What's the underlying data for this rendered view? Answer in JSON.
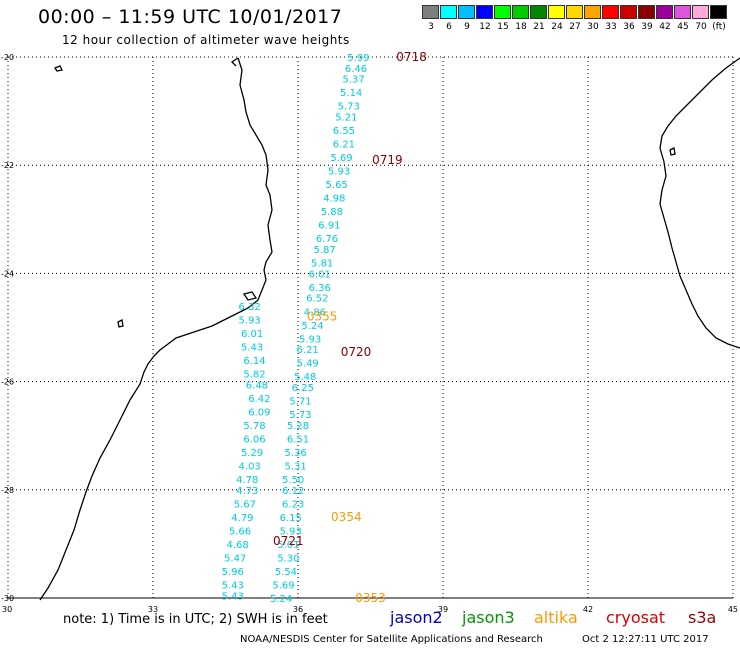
{
  "title": "00:00 – 11:59 UTC 10/01/2017",
  "subtitle": "12 hour collection of altimeter wave heights",
  "color_scale": {
    "labels": [
      "3",
      "6",
      "9",
      "12",
      "15",
      "18",
      "21",
      "24",
      "27",
      "30",
      "33",
      "36",
      "39",
      "42",
      "45",
      "70",
      "(ft)"
    ],
    "colors": [
      "#7f7f7f",
      "#00ffff",
      "#00bfff",
      "#0000ff",
      "#00ff00",
      "#00cc00",
      "#008800",
      "#ffff00",
      "#ffd700",
      "#ffa500",
      "#ff0000",
      "#cc0000",
      "#880000",
      "#990099",
      "#dd55dd",
      "#ffaadd",
      "#000000"
    ]
  },
  "axes": {
    "lat_labels": [
      "-20",
      "-22",
      "-24",
      "-26",
      "-28",
      "-30"
    ],
    "lon_labels": [
      "30",
      "33",
      "36",
      "39",
      "42",
      "45"
    ],
    "lat_values": [
      -20,
      -22,
      -24,
      -26,
      -28,
      -30
    ],
    "lon_values": [
      30,
      33,
      36,
      39,
      42,
      45
    ]
  },
  "track_wave_heights": {
    "color": "#00ccdd",
    "points": [
      {
        "lat": -20.0,
        "lon": 37.25,
        "v": "5.99"
      },
      {
        "lat": -20.2,
        "lon": 37.2,
        "v": "6.46"
      },
      {
        "lat": -20.4,
        "lon": 37.15,
        "v": "5.37"
      },
      {
        "lat": -20.65,
        "lon": 37.1,
        "v": "5.14"
      },
      {
        "lat": -20.9,
        "lon": 37.05,
        "v": "5.73"
      },
      {
        "lat": -21.1,
        "lon": 37.0,
        "v": "5.21"
      },
      {
        "lat": -21.35,
        "lon": 36.95,
        "v": "6.55"
      },
      {
        "lat": -21.6,
        "lon": 36.95,
        "v": "6.21"
      },
      {
        "lat": -21.85,
        "lon": 36.9,
        "v": "5.69"
      },
      {
        "lat": -22.1,
        "lon": 36.85,
        "v": "5.93"
      },
      {
        "lat": -22.35,
        "lon": 36.8,
        "v": "5.65"
      },
      {
        "lat": -22.6,
        "lon": 36.75,
        "v": "4.98"
      },
      {
        "lat": -22.85,
        "lon": 36.7,
        "v": "5.88"
      },
      {
        "lat": -23.1,
        "lon": 36.65,
        "v": "6.91"
      },
      {
        "lat": -23.35,
        "lon": 36.6,
        "v": "6.76"
      },
      {
        "lat": -23.55,
        "lon": 36.55,
        "v": "5.87"
      },
      {
        "lat": -23.8,
        "lon": 36.5,
        "v": "5.81"
      },
      {
        "lat": -24.0,
        "lon": 36.45,
        "v": "6.01"
      },
      {
        "lat": -24.25,
        "lon": 36.45,
        "v": "6.36"
      },
      {
        "lat": -24.45,
        "lon": 36.4,
        "v": "6.52"
      },
      {
        "lat": -24.7,
        "lon": 36.35,
        "v": "4.86"
      },
      {
        "lat": -24.95,
        "lon": 36.3,
        "v": "5.24"
      },
      {
        "lat": -25.2,
        "lon": 36.25,
        "v": "5.93"
      },
      {
        "lat": -25.4,
        "lon": 36.2,
        "v": "6.21"
      },
      {
        "lat": -25.65,
        "lon": 36.2,
        "v": "5.49"
      },
      {
        "lat": -25.9,
        "lon": 36.15,
        "v": "5.48"
      },
      {
        "lat": -26.1,
        "lon": 36.1,
        "v": "6.25"
      },
      {
        "lat": -26.35,
        "lon": 36.05,
        "v": "5.71"
      },
      {
        "lat": -26.6,
        "lon": 36.05,
        "v": "5.73"
      },
      {
        "lat": -26.8,
        "lon": 36.0,
        "v": "5.28"
      },
      {
        "lat": -27.05,
        "lon": 36.0,
        "v": "6.51"
      },
      {
        "lat": -27.3,
        "lon": 35.95,
        "v": "5.36"
      },
      {
        "lat": -27.55,
        "lon": 35.95,
        "v": "5.31"
      },
      {
        "lat": -27.8,
        "lon": 35.9,
        "v": "5.50"
      },
      {
        "lat": -28.0,
        "lon": 35.9,
        "v": "6.12"
      },
      {
        "lat": -28.25,
        "lon": 35.9,
        "v": "6.23"
      },
      {
        "lat": -28.5,
        "lon": 35.85,
        "v": "6.15"
      },
      {
        "lat": -28.75,
        "lon": 35.85,
        "v": "5.93"
      },
      {
        "lat": -29.0,
        "lon": 35.8,
        "v": "5.01"
      },
      {
        "lat": -29.25,
        "lon": 35.8,
        "v": "5.30"
      },
      {
        "lat": -29.5,
        "lon": 35.75,
        "v": "5.54"
      },
      {
        "lat": -29.75,
        "lon": 35.7,
        "v": "5.69"
      },
      {
        "lat": -30.0,
        "lon": 35.65,
        "v": "5.24"
      },
      {
        "lat": -24.6,
        "lon": 35.0,
        "v": "6.32"
      },
      {
        "lat": -24.85,
        "lon": 35.0,
        "v": "5.93"
      },
      {
        "lat": -25.1,
        "lon": 35.05,
        "v": "6.01"
      },
      {
        "lat": -25.35,
        "lon": 35.05,
        "v": "5.43"
      },
      {
        "lat": -25.6,
        "lon": 35.1,
        "v": "6.14"
      },
      {
        "lat": -25.85,
        "lon": 35.1,
        "v": "5.82"
      },
      {
        "lat": -26.05,
        "lon": 35.15,
        "v": "6.48"
      },
      {
        "lat": -26.3,
        "lon": 35.2,
        "v": "6.42"
      },
      {
        "lat": -26.55,
        "lon": 35.2,
        "v": "6.09"
      },
      {
        "lat": -26.8,
        "lon": 35.1,
        "v": "5.78"
      },
      {
        "lat": -27.05,
        "lon": 35.1,
        "v": "6.06"
      },
      {
        "lat": -27.3,
        "lon": 35.05,
        "v": "5.29"
      },
      {
        "lat": -27.55,
        "lon": 35.0,
        "v": "4.03"
      },
      {
        "lat": -27.8,
        "lon": 34.95,
        "v": "4.78"
      },
      {
        "lat": -28.0,
        "lon": 34.95,
        "v": "4.73"
      },
      {
        "lat": -28.25,
        "lon": 34.9,
        "v": "5.67"
      },
      {
        "lat": -28.5,
        "lon": 34.85,
        "v": "4.79"
      },
      {
        "lat": -28.75,
        "lon": 34.8,
        "v": "5.66"
      },
      {
        "lat": -29.0,
        "lon": 34.75,
        "v": "4.68"
      },
      {
        "lat": -29.25,
        "lon": 34.7,
        "v": "5.47"
      },
      {
        "lat": -29.5,
        "lon": 34.65,
        "v": "5.96"
      },
      {
        "lat": -29.75,
        "lon": 34.65,
        "v": "5.43"
      },
      {
        "lat": -29.95,
        "lon": 34.65,
        "v": "5.43"
      }
    ]
  },
  "pass_times": [
    {
      "lat": -20.0,
      "lon": 38.35,
      "text": "0718",
      "color": "#880000"
    },
    {
      "lat": -21.9,
      "lon": 37.85,
      "text": "0719",
      "color": "#880000"
    },
    {
      "lat": -24.8,
      "lon": 36.5,
      "text": "0355",
      "color": "#ff9900"
    },
    {
      "lat": -25.45,
      "lon": 37.2,
      "text": "0720",
      "color": "#880000"
    },
    {
      "lat": -28.5,
      "lon": 37.0,
      "text": "0354",
      "color": "#ff9900"
    },
    {
      "lat": -28.95,
      "lon": 35.8,
      "text": "0721",
      "color": "#880000"
    },
    {
      "lat": -30.0,
      "lon": 37.5,
      "text": "0353",
      "color": "#ff9900"
    }
  ],
  "note": "note:  1) Time is in UTC;  2) SWH is in feet",
  "legend": [
    {
      "label": "jason2",
      "color": "#0000cc"
    },
    {
      "label": "jason3",
      "color": "#009900"
    },
    {
      "label": "altika",
      "color": "#ff9900"
    },
    {
      "label": "cryosat",
      "color": "#dd0000"
    },
    {
      "label": "s3a",
      "color": "#990000"
    }
  ],
  "credit": "NOAA/NESDIS Center for Satellite Applications and Research",
  "generated": "Oct  2 12:27:11 UTC 2017"
}
